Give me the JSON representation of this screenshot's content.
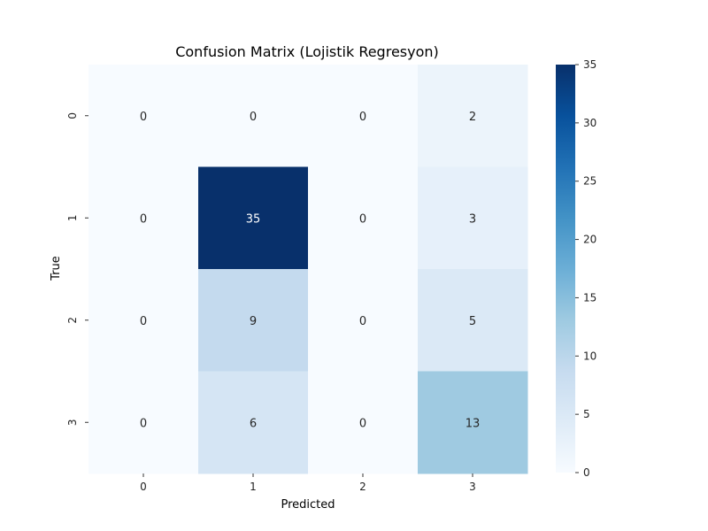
{
  "chart_data": {
    "type": "heatmap",
    "title": "Confusion Matrix (Lojistik Regresyon)",
    "xlabel": "Predicted",
    "ylabel": "True",
    "x_categories": [
      "0",
      "1",
      "2",
      "3"
    ],
    "y_categories": [
      "0",
      "1",
      "2",
      "3"
    ],
    "values": [
      [
        0,
        0,
        0,
        2
      ],
      [
        0,
        35,
        0,
        3
      ],
      [
        0,
        9,
        0,
        5
      ],
      [
        0,
        6,
        0,
        13
      ]
    ],
    "colorbar": {
      "min": 0,
      "max": 35,
      "ticks": [
        0,
        5,
        10,
        15,
        20,
        25,
        30,
        35
      ]
    },
    "colormap": "Blues",
    "colors": {
      "low": "#f7fbff",
      "high": "#08306b"
    }
  }
}
